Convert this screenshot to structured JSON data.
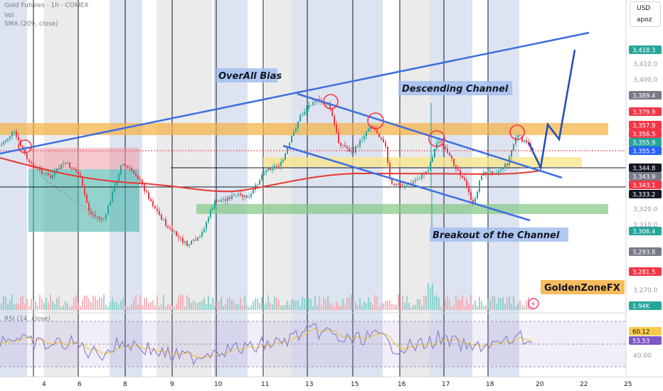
{
  "header": {
    "symbol_line": "Gold Futures · 1h · COMEX",
    "vol_label": "Vol",
    "sma_label": "SMA (209, close)",
    "rsi_label": "RSI (14, close)"
  },
  "currency": {
    "code": "USD",
    "sub": "apoz"
  },
  "price_axis": {
    "ticks": [
      "3,410.0",
      "3,400.0",
      "3,320.0",
      "3,310.0",
      "3,270.0",
      "40.00"
    ],
    "tags": [
      {
        "text": "3,418.3",
        "color": "#26a69a"
      },
      {
        "text": "3,389.4",
        "color": "#787b86"
      },
      {
        "text": "3,379.9",
        "color": "#f23645"
      },
      {
        "text": "3,357.9",
        "color": "#f23645"
      },
      {
        "text": "3,356.5",
        "color": "#f23645"
      },
      {
        "text": "3,355.9",
        "color": "#26a69a"
      },
      {
        "text": "3,355.5",
        "color": "#2962ff"
      },
      {
        "text": "3,344.8",
        "color": "#131722"
      },
      {
        "text": "3,343.9",
        "color": "#787b86"
      },
      {
        "text": "3,343.1",
        "color": "#f23645"
      },
      {
        "text": "3,333.2",
        "color": "#131722"
      },
      {
        "text": "3,306.4",
        "color": "#26a69a"
      },
      {
        "text": "3,293.8",
        "color": "#787b86"
      },
      {
        "text": "3,281.5",
        "color": "#f23645"
      },
      {
        "text": "1.94K",
        "color": "#26a69a"
      },
      {
        "text": "60.12",
        "color": "#f7c948"
      },
      {
        "text": "53.53",
        "color": "#7e57c2"
      }
    ]
  },
  "time_axis": [
    "4",
    "6",
    "8",
    "9",
    "10",
    "11",
    "13",
    "15",
    "16",
    "17",
    "18",
    "20",
    "22",
    "25"
  ],
  "annotations": {
    "overall_bias": "OverAll Bias",
    "descending_channel": "Descending Channel",
    "breakout": "Breakout of the Channel",
    "brand": "GoldenZoneFX"
  },
  "colors": {
    "up": "#26a69a",
    "down": "#f23645",
    "trendline": "#3d6fe0",
    "sma": "#e53935",
    "zone_orange": "#f5b041",
    "zone_yellow": "#f7e58d",
    "zone_green": "#81c784",
    "label_bg": "#a3bff0",
    "rsi_line": "#8e86c9",
    "rsi_ma": "#f5c542"
  }
}
